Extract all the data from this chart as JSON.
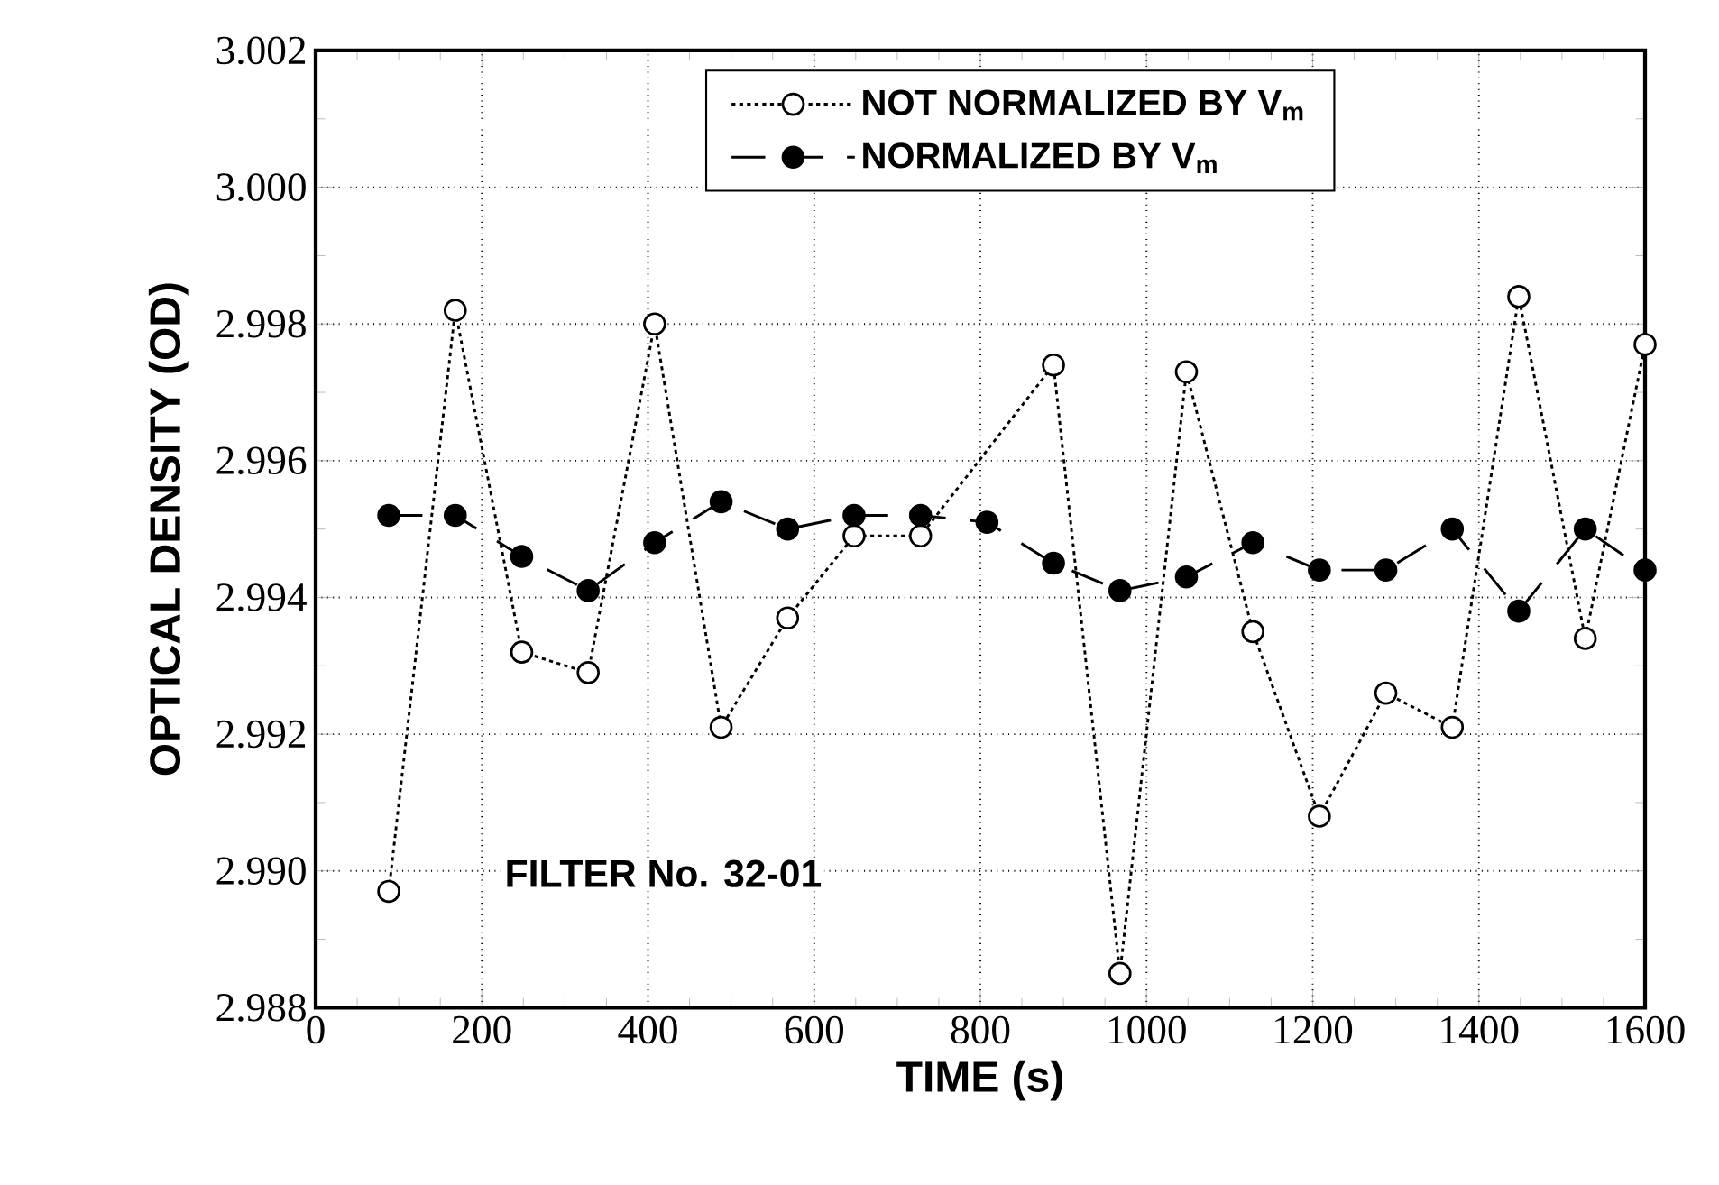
{
  "chart_data": {
    "type": "line",
    "xlabel": "TIME (s)",
    "ylabel": "OPTICAL DENSITY (OD)",
    "x": [
      88,
      168,
      248,
      328,
      408,
      488,
      568,
      648,
      728,
      808,
      888,
      968,
      1048,
      1128,
      1208,
      1288,
      1368,
      1448,
      1528,
      1600
    ],
    "series": [
      {
        "name": "NOT NORMALIZED BY V$_{m}$",
        "color": "#000000",
        "line_style": "dotted",
        "values": [
          2.9897,
          2.9982,
          2.9932,
          2.9929,
          2.998,
          2.9921,
          2.9937,
          2.9949,
          2.9949,
          null,
          2.9974,
          2.9885,
          2.9973,
          2.9935,
          2.9908,
          2.9926,
          2.9921,
          2.9984,
          2.9934,
          2.9977
        ]
      },
      {
        "name": "NORMALIZED BY V$_{m}$",
        "color": "#000000",
        "line_style": "dashed",
        "values": [
          2.9952,
          2.9952,
          2.9946,
          2.9941,
          2.9948,
          2.9954,
          2.995,
          2.9952,
          2.9952,
          2.9951,
          2.9945,
          2.9941,
          2.9943,
          2.9948,
          2.9944,
          2.9944,
          2.995,
          2.9938,
          2.995,
          2.9944
        ]
      }
    ],
    "xlim": [
      0,
      1600
    ],
    "ylim": [
      2.988,
      3.002
    ],
    "xticks": [
      0,
      200,
      400,
      600,
      800,
      1000,
      1200,
      1400,
      1600
    ],
    "yticks": [
      {
        "value": 2.988,
        "label": "2.988"
      },
      {
        "value": 2.99,
        "label": "2.990"
      },
      {
        "value": 2.992,
        "label": "2.992"
      },
      {
        "value": 2.994,
        "label": "2.994"
      },
      {
        "value": 2.996,
        "label": "2.996"
      },
      {
        "value": 2.998,
        "label": "2.998"
      },
      {
        "value": 3.0,
        "label": "3.000"
      },
      {
        "value": 3.002,
        "label": "3.002"
      }
    ],
    "grid": true,
    "legend": "top",
    "marker": "circle",
    "annotations": [
      "FILTER No. 32-01"
    ]
  }
}
